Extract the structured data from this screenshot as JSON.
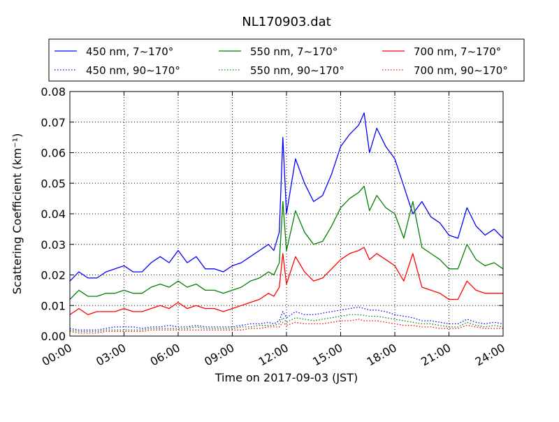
{
  "chart_data": {
    "type": "line",
    "title": "NL170903.dat",
    "xlabel": "Time on 2017-09-03 (JST)",
    "ylabel": "Scattering Coefficient (km⁻¹)",
    "xlim": [
      "2017-09-03 00:00",
      "2017-09-04 00:00"
    ],
    "ylim": [
      0.0,
      0.08
    ],
    "grid": true,
    "legend_position": "top, above plot",
    "x_ticks": [
      "00:00",
      "03:00",
      "06:00",
      "09:00",
      "12:00",
      "15:00",
      "18:00",
      "21:00",
      "24:00"
    ],
    "y_ticks": [
      "0.00",
      "0.01",
      "0.02",
      "0.03",
      "0.04",
      "0.05",
      "0.06",
      "0.07",
      "0.08"
    ],
    "x_hours": [
      0,
      0.5,
      1,
      1.5,
      2,
      2.5,
      3,
      3.5,
      4,
      4.5,
      5,
      5.5,
      6,
      6.5,
      7,
      7.5,
      8,
      8.5,
      9,
      9.5,
      10,
      10.5,
      11,
      11.3,
      11.6,
      11.8,
      12,
      12.5,
      13,
      13.5,
      14,
      14.5,
      15,
      15.5,
      16,
      16.3,
      16.6,
      17,
      17.5,
      18,
      18.5,
      19,
      19.5,
      20,
      20.5,
      21,
      21.5,
      22,
      22.5,
      23,
      23.5,
      24
    ],
    "series": [
      {
        "name": "450 nm, 7∼170°",
        "color": "#0000ff",
        "style": "solid",
        "values": [
          0.018,
          0.021,
          0.019,
          0.019,
          0.021,
          0.022,
          0.023,
          0.021,
          0.021,
          0.024,
          0.026,
          0.024,
          0.028,
          0.024,
          0.026,
          0.022,
          0.022,
          0.021,
          0.023,
          0.024,
          0.026,
          0.028,
          0.03,
          0.028,
          0.034,
          0.065,
          0.04,
          0.058,
          0.05,
          0.044,
          0.046,
          0.053,
          0.062,
          0.066,
          0.069,
          0.073,
          0.06,
          0.068,
          0.062,
          0.058,
          0.049,
          0.04,
          0.044,
          0.039,
          0.037,
          0.033,
          0.032,
          0.042,
          0.036,
          0.033,
          0.035,
          0.032
        ]
      },
      {
        "name": "550 nm, 7∼170°",
        "color": "#008000",
        "style": "solid",
        "values": [
          0.012,
          0.015,
          0.013,
          0.013,
          0.014,
          0.014,
          0.015,
          0.014,
          0.014,
          0.016,
          0.017,
          0.016,
          0.018,
          0.016,
          0.017,
          0.015,
          0.015,
          0.014,
          0.015,
          0.016,
          0.018,
          0.019,
          0.021,
          0.02,
          0.024,
          0.044,
          0.028,
          0.041,
          0.034,
          0.03,
          0.031,
          0.036,
          0.042,
          0.045,
          0.047,
          0.049,
          0.041,
          0.046,
          0.042,
          0.04,
          0.032,
          0.044,
          0.029,
          0.027,
          0.025,
          0.022,
          0.022,
          0.03,
          0.025,
          0.023,
          0.024,
          0.022
        ]
      },
      {
        "name": "700 nm, 7∼170°",
        "color": "#ff0000",
        "style": "solid",
        "values": [
          0.007,
          0.009,
          0.007,
          0.008,
          0.008,
          0.008,
          0.009,
          0.008,
          0.008,
          0.009,
          0.01,
          0.009,
          0.011,
          0.009,
          0.01,
          0.009,
          0.009,
          0.008,
          0.009,
          0.01,
          0.011,
          0.012,
          0.014,
          0.013,
          0.016,
          0.027,
          0.017,
          0.026,
          0.021,
          0.018,
          0.019,
          0.022,
          0.025,
          0.027,
          0.028,
          0.029,
          0.025,
          0.027,
          0.025,
          0.023,
          0.018,
          0.027,
          0.016,
          0.015,
          0.014,
          0.012,
          0.012,
          0.018,
          0.015,
          0.014,
          0.014,
          0.014
        ]
      },
      {
        "name": "450 nm, 90∼170°",
        "color": "#0000ff",
        "style": "dotted",
        "values": [
          0.0025,
          0.002,
          0.002,
          0.002,
          0.0025,
          0.003,
          0.003,
          0.003,
          0.0025,
          0.003,
          0.003,
          0.0035,
          0.003,
          0.003,
          0.0035,
          0.003,
          0.003,
          0.003,
          0.003,
          0.0035,
          0.004,
          0.004,
          0.0045,
          0.004,
          0.005,
          0.008,
          0.006,
          0.008,
          0.007,
          0.007,
          0.0075,
          0.008,
          0.0085,
          0.009,
          0.0095,
          0.009,
          0.0085,
          0.0085,
          0.008,
          0.007,
          0.0065,
          0.006,
          0.005,
          0.005,
          0.0045,
          0.004,
          0.004,
          0.0055,
          0.0045,
          0.004,
          0.0045,
          0.004
        ]
      },
      {
        "name": "550 nm, 90∼170°",
        "color": "#008000",
        "style": "dotted",
        "values": [
          0.002,
          0.0015,
          0.0015,
          0.0015,
          0.002,
          0.002,
          0.002,
          0.002,
          0.002,
          0.0025,
          0.0025,
          0.0025,
          0.0025,
          0.0025,
          0.003,
          0.0025,
          0.0025,
          0.0025,
          0.0025,
          0.003,
          0.003,
          0.0035,
          0.0035,
          0.0035,
          0.004,
          0.006,
          0.0045,
          0.006,
          0.0055,
          0.005,
          0.0055,
          0.006,
          0.0065,
          0.007,
          0.007,
          0.0068,
          0.0065,
          0.0065,
          0.006,
          0.0055,
          0.005,
          0.0045,
          0.004,
          0.004,
          0.0035,
          0.003,
          0.003,
          0.0045,
          0.0035,
          0.003,
          0.0035,
          0.003
        ]
      },
      {
        "name": "700 nm, 90∼170°",
        "color": "#ff0000",
        "style": "dotted",
        "values": [
          0.0015,
          0.001,
          0.001,
          0.001,
          0.0015,
          0.0015,
          0.0015,
          0.0015,
          0.0015,
          0.002,
          0.002,
          0.002,
          0.002,
          0.002,
          0.002,
          0.002,
          0.002,
          0.002,
          0.002,
          0.002,
          0.0025,
          0.0025,
          0.003,
          0.003,
          0.003,
          0.0045,
          0.0035,
          0.0045,
          0.004,
          0.004,
          0.004,
          0.0045,
          0.005,
          0.005,
          0.0055,
          0.005,
          0.005,
          0.005,
          0.0045,
          0.004,
          0.0035,
          0.0035,
          0.003,
          0.003,
          0.0025,
          0.0025,
          0.0025,
          0.0035,
          0.003,
          0.0025,
          0.0025,
          0.0025
        ]
      }
    ]
  }
}
